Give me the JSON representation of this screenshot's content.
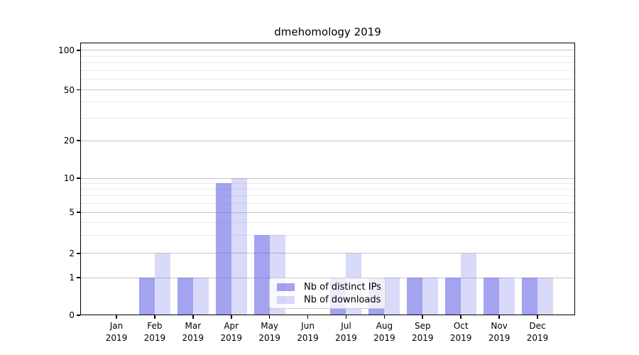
{
  "chart_data": {
    "type": "bar",
    "title": "dmehomology 2019",
    "x_months": [
      "Jan",
      "Feb",
      "Mar",
      "Apr",
      "May",
      "Jun",
      "Jul",
      "Aug",
      "Sep",
      "Oct",
      "Nov",
      "Dec"
    ],
    "x_year": "2019",
    "series": [
      {
        "name": "Nb of distinct IPs",
        "color": "rgba(102,102,230,0.6)",
        "values": [
          0,
          1,
          1,
          9,
          3,
          0,
          1,
          1,
          1,
          1,
          1,
          1
        ]
      },
      {
        "name": "Nb of downloads",
        "color": "rgba(102,102,230,0.25)",
        "values": [
          0,
          2,
          1,
          10,
          3,
          0,
          2,
          1,
          1,
          2,
          1,
          1
        ]
      }
    ],
    "y_axis": {
      "scale": "symlog",
      "ticks": [
        0,
        1,
        2,
        5,
        10,
        20,
        50,
        100
      ],
      "minor_ticks": [
        3,
        4,
        6,
        7,
        8,
        9,
        30,
        40,
        60,
        70,
        80,
        90
      ],
      "range_max": 116
    },
    "legend_entries": [
      "Nb of distinct IPs",
      "Nb of downloads"
    ],
    "grid": true,
    "colors": {
      "bar_base": "#6666e6",
      "major_grid": "#c6c6c6",
      "minor_grid": "#ebebeb",
      "axis": "#000000",
      "legend_border": "#cccccc"
    }
  }
}
